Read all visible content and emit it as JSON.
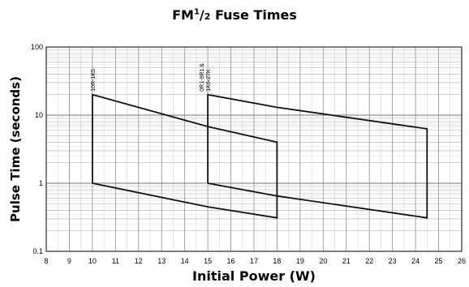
{
  "chart_data": {
    "type": "line",
    "title": {
      "prefix": "FM",
      "sup": "1",
      "slash": "/",
      "sub": "2",
      "suffix": " Fuse Times"
    },
    "xlabel": "Initial Power (W)",
    "ylabel": "Pulse Time (seconds)",
    "xlim": [
      8,
      26
    ],
    "ylim": [
      0.1,
      100
    ],
    "yscale": "log",
    "grid": true,
    "x_ticks": [
      "8",
      "9",
      "10",
      "11",
      "12",
      "13",
      "14",
      "15",
      "16",
      "17",
      "18",
      "19",
      "20",
      "21",
      "22",
      "23",
      "24",
      "25",
      "26"
    ],
    "y_ticks": [
      "100",
      "10",
      "1",
      "0.1"
    ],
    "series": [
      {
        "name": "10R-1K5",
        "upper": [
          [
            10,
            20
          ],
          [
            15,
            6.8
          ],
          [
            18,
            4.0
          ]
        ],
        "lower": [
          [
            10,
            1.0
          ],
          [
            15,
            0.45
          ],
          [
            18,
            0.31
          ]
        ],
        "outline": [
          [
            10,
            1.0
          ],
          [
            10,
            20
          ],
          [
            15,
            6.8
          ],
          [
            18,
            4.0
          ],
          [
            18,
            0.31
          ],
          [
            15,
            0.45
          ],
          [
            10,
            1.0
          ]
        ]
      },
      {
        "name": "0R1-9R1 & 1K6-27K",
        "upper": [
          [
            15,
            20
          ],
          [
            18,
            13.0
          ],
          [
            24.5,
            6.3
          ]
        ],
        "lower": [
          [
            15,
            1.0
          ],
          [
            18,
            0.65
          ],
          [
            24.5,
            0.31
          ]
        ],
        "outline": [
          [
            15,
            1.0
          ],
          [
            15,
            20
          ],
          [
            18,
            13.0
          ],
          [
            24.5,
            6.3
          ],
          [
            24.5,
            0.31
          ],
          [
            18,
            0.65
          ],
          [
            15,
            1.0
          ]
        ]
      }
    ],
    "annotations": [
      {
        "lines": [
          "10R-1K5"
        ],
        "at": [
          10,
          20
        ]
      },
      {
        "lines": [
          "0R1-9R1 &",
          "1K6-27K"
        ],
        "at": [
          15,
          20
        ]
      }
    ]
  }
}
